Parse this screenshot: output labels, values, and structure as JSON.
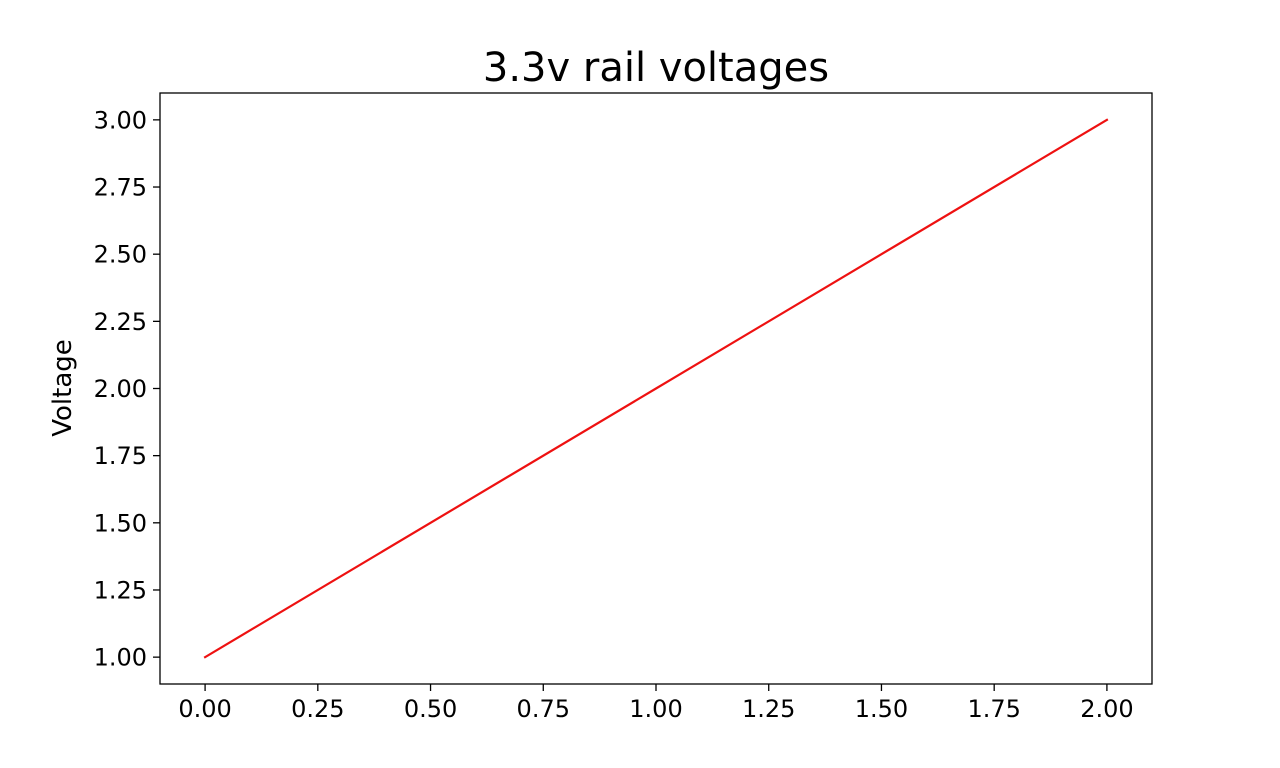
{
  "chart_data": {
    "type": "line",
    "title": "3.3v rail voltages",
    "xlabel": "",
    "ylabel": "Voltage",
    "xlim": [
      -0.1,
      2.1
    ],
    "ylim": [
      0.9,
      3.1
    ],
    "x_ticks": [
      0.0,
      0.25,
      0.5,
      0.75,
      1.0,
      1.25,
      1.5,
      1.75,
      2.0
    ],
    "x_tick_labels": [
      "0.00",
      "0.25",
      "0.50",
      "0.75",
      "1.00",
      "1.25",
      "1.50",
      "1.75",
      "2.00"
    ],
    "y_ticks": [
      1.0,
      1.25,
      1.5,
      1.75,
      2.0,
      2.25,
      2.5,
      2.75,
      3.0
    ],
    "y_tick_labels": [
      "1.00",
      "1.25",
      "1.50",
      "1.75",
      "2.00",
      "2.25",
      "2.50",
      "2.75",
      "3.00"
    ],
    "grid": false,
    "series": [
      {
        "color": "#ee1111",
        "x": [
          0,
          1,
          2
        ],
        "y": [
          1,
          2,
          3
        ]
      }
    ]
  }
}
